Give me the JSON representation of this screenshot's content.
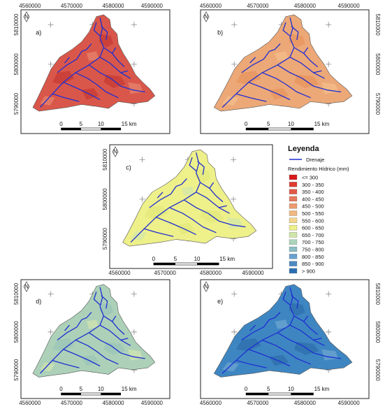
{
  "panels": [
    {
      "tag": "a)",
      "fill": "#d9574a",
      "patch": "#c73c36",
      "patch2": "#e5826a",
      "x_ticks": [
        "4560000",
        "4570000",
        "4580000",
        "4590000"
      ],
      "x_ticks_position": "top",
      "y_ticks": [
        "5810000",
        "5800000",
        "5790000"
      ],
      "y_ticks_side": "left"
    },
    {
      "tag": "b)",
      "fill": "#eda877",
      "patch": "#e7955f",
      "patch2": "#f2bd8a",
      "x_ticks": [
        "4560000",
        "4570000",
        "4580000",
        "4590000"
      ],
      "x_ticks_position": "top",
      "y_ticks": [
        "5810000",
        "5800000",
        "5790000"
      ],
      "y_ticks_side": "right"
    },
    {
      "tag": "c)",
      "fill": "#eef08a",
      "patch": "#e2ea7a",
      "patch2": "#d6e8a6",
      "x_ticks": [
        "4560000",
        "4570000",
        "4580000",
        "4590000"
      ],
      "x_ticks_position": "bottom",
      "y_ticks": [
        "5810000",
        "5800000",
        "5790000"
      ],
      "y_ticks_side": "left"
    },
    {
      "tag": "d)",
      "fill": "#acd1b8",
      "patch": "#9cc5b9",
      "patch2": "#cfe2b0",
      "x_ticks": [
        "4560000",
        "4570000",
        "4580000",
        "4590000"
      ],
      "x_ticks_position": "bottom",
      "y_ticks": [
        "5810000",
        "5800000",
        "5790000"
      ],
      "y_ticks_side": "left"
    },
    {
      "tag": "e)",
      "fill": "#3e86c2",
      "patch": "#2f6fae",
      "patch2": "#6aa2cf",
      "x_ticks": [
        "4560000",
        "4570000",
        "4580000",
        "4590000"
      ],
      "x_ticks_position": "bottom",
      "y_ticks": [
        "5810000",
        "5800000",
        "5790000"
      ],
      "y_ticks_side": "right"
    }
  ],
  "scale_bar": {
    "labels": [
      "0",
      "5",
      "10",
      "15 km"
    ]
  },
  "north_label": "N",
  "legend": {
    "title": "Leyenda",
    "drainage_label": "Drenaje",
    "drainage_color": "#1f2fd1",
    "subtitle": "Rendimiento Hídrico (mm)",
    "classes": [
      {
        "label": "<= 300",
        "color": "#d7191c"
      },
      {
        "label": "300 - 350",
        "color": "#dd3b32"
      },
      {
        "label": "350 - 400",
        "color": "#e05848"
      },
      {
        "label": "400 - 450",
        "color": "#e57a5c"
      },
      {
        "label": "450 - 500",
        "color": "#eb9a6e"
      },
      {
        "label": "500 - 550",
        "color": "#f1b87f"
      },
      {
        "label": "550 - 600",
        "color": "#f4d68d"
      },
      {
        "label": "600 - 650",
        "color": "#eef08a"
      },
      {
        "label": "650 - 700",
        "color": "#cfe6a8"
      },
      {
        "label": "700 - 750",
        "color": "#abd4bb"
      },
      {
        "label": "750 - 800",
        "color": "#8cbdc4"
      },
      {
        "label": "800 - 850",
        "color": "#6aa2cf"
      },
      {
        "label": "850 - 900",
        "color": "#4a89c3"
      },
      {
        "label": "> 900",
        "color": "#2b6fb3"
      }
    ]
  }
}
